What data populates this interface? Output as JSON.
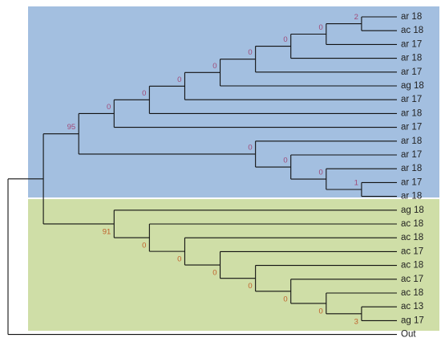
{
  "tree": {
    "children": [
      {
        "children": [
          {
            "label": "95",
            "children": [
              {
                "label": "0",
                "children": [
                  {
                    "label": "0",
                    "children": [
                      {
                        "label": "0",
                        "children": [
                          {
                            "label": "0",
                            "children": [
                              {
                                "label": "0",
                                "children": [
                                  {
                                    "label": "0",
                                    "children": [
                                      {
                                        "label": "0",
                                        "children": [
                                          {
                                            "label": "2",
                                            "children": [
                                              {
                                                "name": "ar 18"
                                              },
                                              {
                                                "name": "ac 18"
                                              }
                                            ]
                                          },
                                          {
                                            "name": "ar 17"
                                          }
                                        ]
                                      },
                                      {
                                        "name": "ar 18"
                                      }
                                    ]
                                  },
                                  {
                                    "name": "ar 17"
                                  }
                                ]
                              },
                              {
                                "name": "ag 18"
                              }
                            ]
                          },
                          {
                            "name": "ar 17"
                          }
                        ]
                      },
                      {
                        "name": "ar 18"
                      }
                    ]
                  },
                  {
                    "name": "ar 17"
                  }
                ]
              },
              {
                "label": "0",
                "children": [
                  {
                    "name": "ar 18"
                  },
                  {
                    "label": "0",
                    "children": [
                      {
                        "name": "ar 17"
                      },
                      {
                        "label": "0",
                        "children": [
                          {
                            "name": "ar 18"
                          },
                          {
                            "label": "1",
                            "children": [
                              {
                                "name": "ar 17"
                              },
                              {
                                "name": "ar 18"
                              }
                            ]
                          }
                        ]
                      }
                    ]
                  }
                ]
              }
            ]
          },
          {
            "label": "91",
            "children": [
              {
                "name": "ag 18"
              },
              {
                "label": "0",
                "children": [
                  {
                    "name": "ac 18"
                  },
                  {
                    "label": "0",
                    "children": [
                      {
                        "name": "ac 18"
                      },
                      {
                        "label": "0",
                        "children": [
                          {
                            "name": "ac 17"
                          },
                          {
                            "label": "0",
                            "children": [
                              {
                                "name": "ac 18"
                              },
                              {
                                "label": "0",
                                "children": [
                                  {
                                    "name": "ac 17"
                                  },
                                  {
                                    "label": "0",
                                    "children": [
                                      {
                                        "name": "ac 18"
                                      },
                                      {
                                        "label": "3",
                                        "children": [
                                          {
                                            "name": "ac 13"
                                          },
                                          {
                                            "name": "ag 17"
                                          }
                                        ]
                                      }
                                    ]
                                  }
                                ]
                              }
                            ]
                          }
                        ]
                      }
                    ]
                  }
                ]
              }
            ]
          }
        ]
      },
      {
        "name": "Out"
      }
    ]
  }
}
